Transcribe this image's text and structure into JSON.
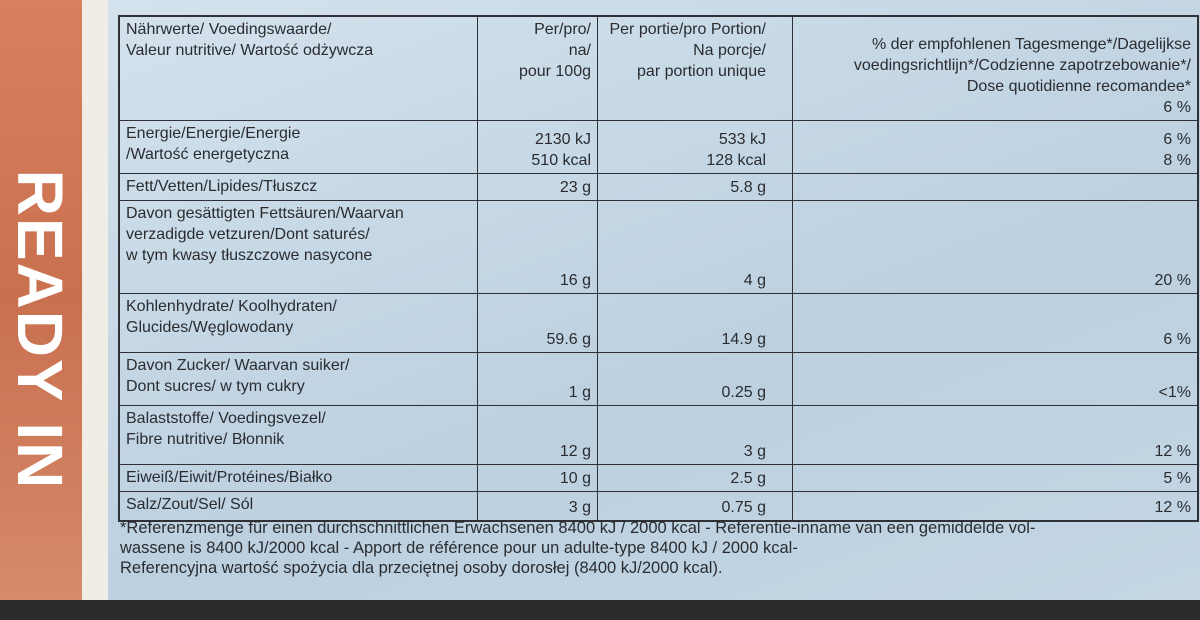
{
  "side_text": "READY IN",
  "table": {
    "header": [
      [
        "Nährwerte/ Voedingswaarde/",
        "Valeur nutritive/ Wartość odżywcza"
      ],
      [
        "Per/pro/",
        "na/",
        "pour 100g"
      ],
      [
        "Per portie/pro Portion/",
        "Na porcje/",
        "par portion unique"
      ],
      [
        "% der empfohlenen Tagesmenge*/Dagelijkse",
        "voedingsrichtlijn*/Codzienne zapotrzebowanie*/",
        "Dose quotidienne recomandee*",
        "6 %"
      ]
    ],
    "rows": [
      [
        [
          "Energie/Energie/Energie",
          "/Wartość energetyczna"
        ],
        [
          "2130 kJ",
          "510 kcal"
        ],
        [
          "533 kJ",
          "128 kcal"
        ],
        [
          "6 %",
          "8 %"
        ]
      ],
      [
        [
          "Fett/Vetten/Lipides/Tłuszcz"
        ],
        [
          "23 g"
        ],
        [
          "5.8 g"
        ],
        []
      ],
      [
        [
          "Davon gesättigten Fettsäuren/Waarvan",
          "verzadigde vetzuren/Dont saturés/",
          "w tym kwasy tłuszczowe nasycone"
        ],
        [
          "16 g"
        ],
        [
          "4 g"
        ],
        [
          "20 %"
        ]
      ],
      [
        [
          "Kohlenhydrate/ Koolhydraten/",
          "Glucides/Węglowodany"
        ],
        [
          "59.6 g"
        ],
        [
          "14.9 g"
        ],
        [
          "6 %"
        ]
      ],
      [
        [
          "Davon Zucker/ Waarvan suiker/",
          "Dont sucres/ w tym cukry"
        ],
        [
          "1 g"
        ],
        [
          "0.25 g"
        ],
        [
          "<1%"
        ]
      ],
      [
        [
          "Balaststoffe/ Voedingsvezel/",
          "Fibre nutritive/ Błonnik"
        ],
        [
          "12 g"
        ],
        [
          "3 g"
        ],
        [
          "12 %"
        ]
      ],
      [
        [
          "Eiweiß/Eiwit/Protéines/Białko"
        ],
        [
          "10 g"
        ],
        [
          "2.5 g"
        ],
        [
          "5 %"
        ]
      ],
      [
        [
          "Salz/Zout/Sel/ Sól"
        ],
        [
          "3 g"
        ],
        [
          "0.75 g"
        ],
        [
          "12 %"
        ]
      ]
    ]
  },
  "footnote": [
    "*Referenzmenge für einen durchschnittlichen Erwachsenen 8400 kJ / 2000 kcal - Referentie-inname van een gemiddelde vol-",
    "wassene is 8400 kJ/2000 kcal - Apport de référence pour un adulte-type 8400 kJ / 2000 kcal-",
    "Referencyjna wartość spożycia dla przeciętnej osoby dorosłej (8400 kJ/2000 kcal)."
  ]
}
